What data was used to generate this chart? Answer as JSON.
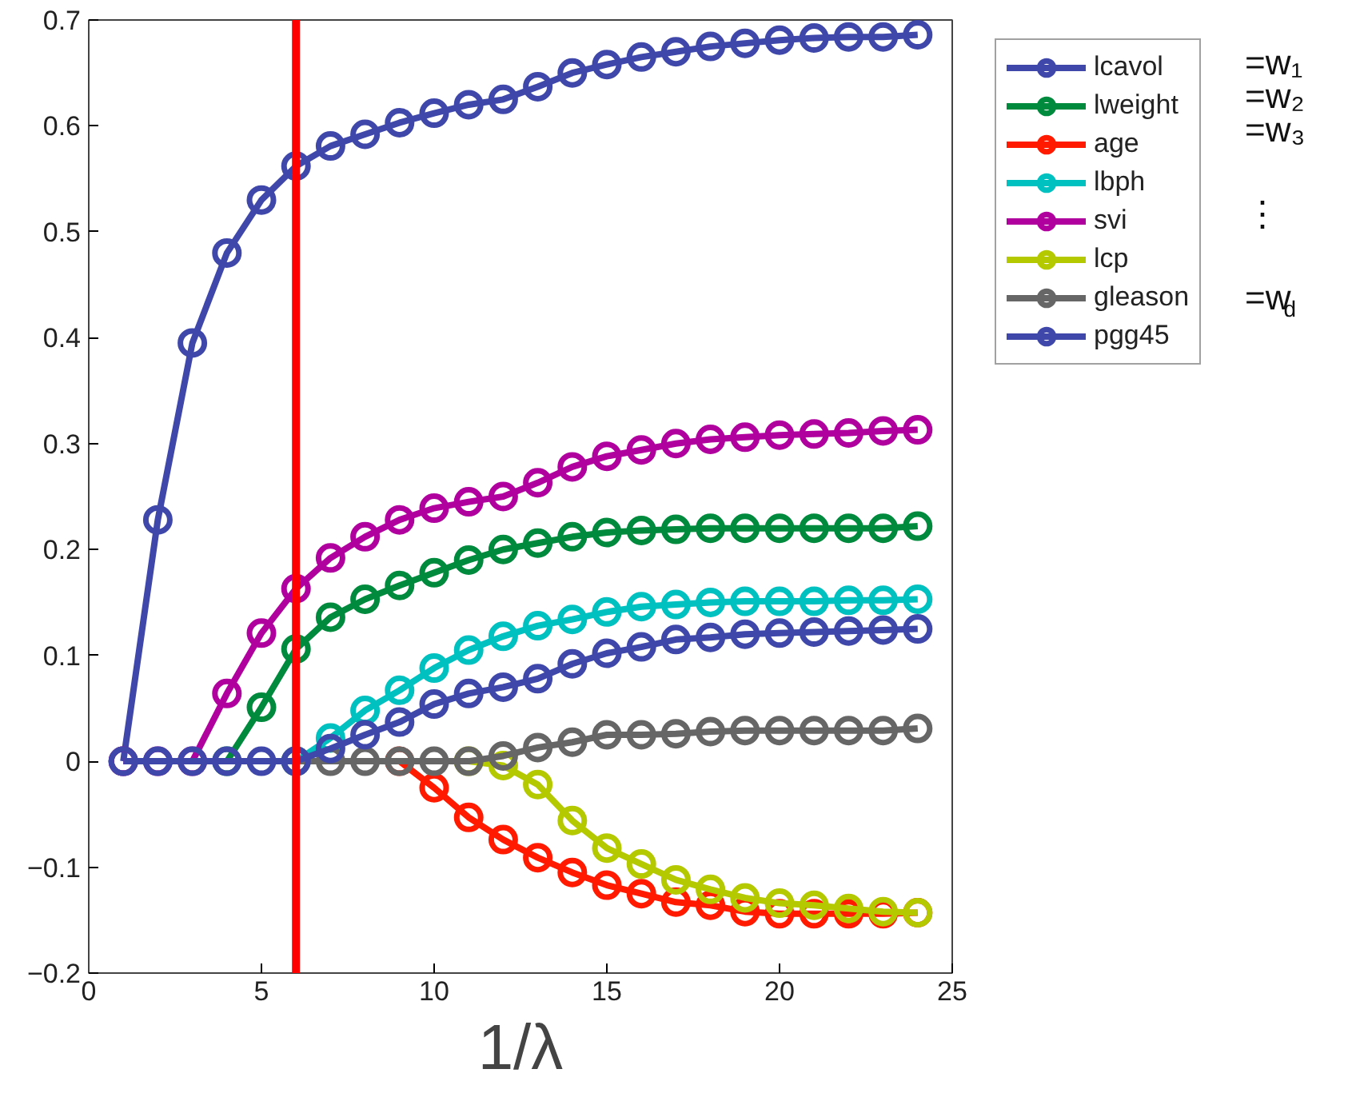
{
  "chart_data": {
    "type": "line",
    "xlabel": "1/λ",
    "x": [
      1,
      2,
      3,
      4,
      5,
      6,
      7,
      8,
      9,
      10,
      11,
      12,
      13,
      14,
      15,
      16,
      17,
      18,
      19,
      20,
      21,
      22,
      23,
      24
    ],
    "xlim": [
      0,
      25
    ],
    "xticks": [
      0,
      5,
      10,
      15,
      20,
      25
    ],
    "ylim": [
      -0.2,
      0.7
    ],
    "yticks": [
      -0.2,
      -0.1,
      0,
      0.1,
      0.2,
      0.3,
      0.4,
      0.5,
      0.6,
      0.7
    ],
    "grid": false,
    "legend": "right",
    "marker": "circle",
    "line_style": "solid",
    "series": [
      {
        "name": "lcavol",
        "color": "#3f48aa",
        "values": [
          0,
          0.228,
          0.395,
          0.48,
          0.53,
          0.562,
          0.581,
          0.592,
          0.603,
          0.612,
          0.62,
          0.625,
          0.637,
          0.65,
          0.658,
          0.665,
          0.67,
          0.675,
          0.678,
          0.681,
          0.683,
          0.684,
          0.684,
          0.686
        ]
      },
      {
        "name": "lweight",
        "color": "#008a3e",
        "values": [
          null,
          null,
          null,
          0,
          0.051,
          0.106,
          0.136,
          0.153,
          0.166,
          0.178,
          0.19,
          0.2,
          0.206,
          0.212,
          0.216,
          0.218,
          0.219,
          0.22,
          0.22,
          0.22,
          0.22,
          0.22,
          0.22,
          0.222
        ]
      },
      {
        "name": "age",
        "color": "#ff1a00",
        "values": [
          null,
          null,
          null,
          null,
          null,
          null,
          null,
          null,
          0,
          -0.025,
          -0.053,
          -0.074,
          -0.091,
          -0.105,
          -0.117,
          -0.125,
          -0.133,
          -0.136,
          -0.142,
          -0.144,
          -0.144,
          -0.144,
          -0.144,
          -0.143
        ]
      },
      {
        "name": "lbph",
        "color": "#00c0c0",
        "values": [
          null,
          null,
          null,
          null,
          null,
          0,
          0.022,
          0.048,
          0.067,
          0.088,
          0.105,
          0.118,
          0.128,
          0.134,
          0.141,
          0.146,
          0.148,
          0.15,
          0.151,
          0.151,
          0.151,
          0.152,
          0.152,
          0.153
        ]
      },
      {
        "name": "svi",
        "color": "#b0009e",
        "values": [
          0,
          0,
          0,
          0.064,
          0.121,
          0.163,
          0.192,
          0.212,
          0.228,
          0.239,
          0.245,
          0.25,
          0.263,
          0.278,
          0.288,
          0.294,
          0.3,
          0.304,
          0.306,
          0.308,
          0.309,
          0.31,
          0.312,
          0.313
        ]
      },
      {
        "name": "lcp",
        "color": "#b5c900",
        "values": [
          null,
          null,
          null,
          null,
          null,
          null,
          null,
          null,
          null,
          null,
          0,
          -0.004,
          -0.022,
          -0.056,
          -0.082,
          -0.097,
          -0.112,
          -0.121,
          -0.129,
          -0.134,
          -0.136,
          -0.139,
          -0.142,
          -0.143
        ]
      },
      {
        "name": "gleason",
        "color": "#666666",
        "values": [
          null,
          null,
          null,
          null,
          null,
          0,
          0,
          0,
          0,
          0,
          0,
          0.005,
          0.013,
          0.018,
          0.025,
          0.025,
          0.026,
          0.028,
          0.029,
          0.029,
          0.029,
          0.029,
          0.029,
          0.031
        ]
      },
      {
        "name": "pgg45",
        "color": "#3f48aa",
        "values": [
          0,
          0,
          0,
          0,
          0,
          0,
          0.012,
          0.025,
          0.037,
          0.054,
          0.064,
          0.07,
          0.078,
          0.092,
          0.102,
          0.108,
          0.115,
          0.117,
          0.12,
          0.121,
          0.122,
          0.123,
          0.124,
          0.125
        ]
      }
    ],
    "ref_lines": [
      {
        "axis": "x",
        "value": 6,
        "color": "#ff0000",
        "line_style": "solid"
      }
    ],
    "annotations": [
      "=w₁",
      "=w₂",
      "=w₃",
      "⋮",
      "=w$_{d}$"
    ]
  }
}
